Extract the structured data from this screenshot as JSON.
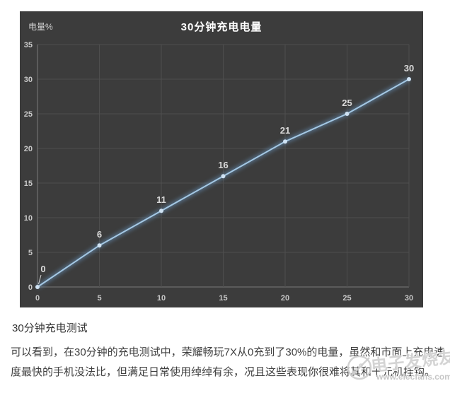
{
  "page": {
    "caption": "30分钟充电测试",
    "paragraph_lines": [
      "可以看到，在30分钟的充电测试中，荣耀畅玩7X从0充到了30%的电量，虽然和市面上充电速",
      "度最快的手机没法比，但满足日常使用绰绰有余，况且这些表现你很难将其和千元机挂钩。"
    ]
  },
  "chart": {
    "title": "30分钟充电电量",
    "axis_unit_label": "电量%",
    "colors": {
      "panel_bg": "#3c3c3c",
      "gridline": "#4e4e4e",
      "axis_line": "#7a7a7a",
      "tick_text": "#c9c9c9",
      "title_text": "#ffffff",
      "line": "#a4c8e4",
      "line_glow": "#6d9fce",
      "marker": "#cfe2f3",
      "data_label_text": "#d9d9d9"
    }
  },
  "chart_data": {
    "type": "line",
    "title": "30分钟充电电量",
    "ylabel": "电量%",
    "xlabel": "",
    "x": [
      0,
      5,
      10,
      15,
      20,
      25,
      30
    ],
    "values": [
      0,
      6,
      11,
      16,
      21,
      25,
      30
    ],
    "data_labels": [
      "0",
      "6",
      "11",
      "16",
      "21",
      "25",
      "30"
    ],
    "xlim": [
      0,
      30
    ],
    "ylim": [
      0,
      35
    ],
    "xticks": [
      0,
      5,
      10,
      15,
      20,
      25,
      30
    ],
    "yticks": [
      0,
      5,
      10,
      15,
      20,
      25,
      30,
      35
    ],
    "grid": true,
    "legend": false
  },
  "watermark": {
    "brand": "电子发烧友",
    "url": "www.elecfans.com"
  }
}
